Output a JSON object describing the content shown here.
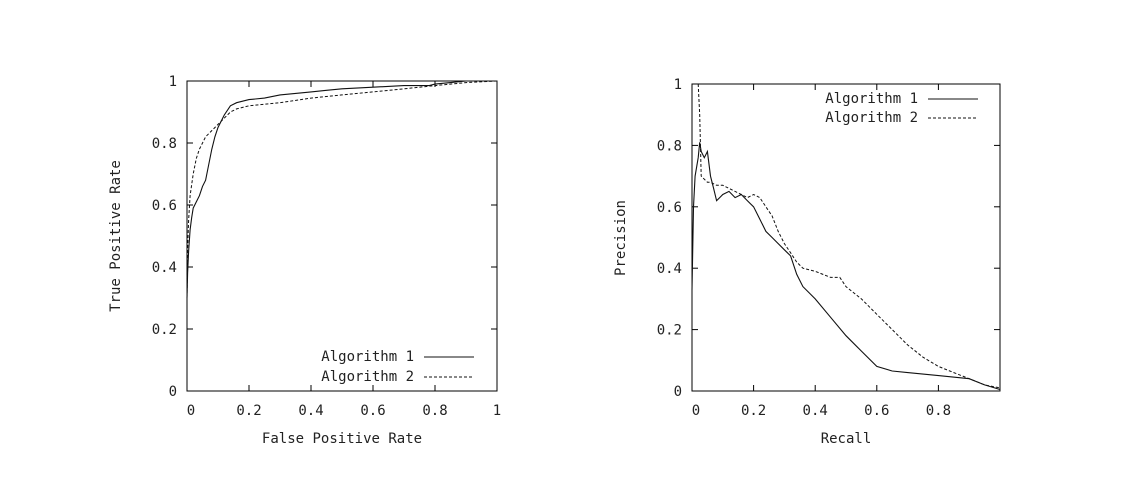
{
  "chart_data": [
    {
      "type": "line",
      "title": "",
      "xlabel": "False Positive Rate",
      "ylabel": "True Positive Rate",
      "xlim": [
        0,
        1
      ],
      "ylim": [
        0,
        1
      ],
      "xticks": [
        "0",
        "0.2",
        "0.4",
        "0.6",
        "0.8",
        "1"
      ],
      "yticks": [
        "0",
        "0.2",
        "0.4",
        "0.6",
        "0.8",
        "1"
      ],
      "grid": false,
      "legend": "bottom-right",
      "series": [
        {
          "name": "Algorithm 1",
          "style": "solid",
          "x": [
            0.0,
            0.002,
            0.005,
            0.01,
            0.015,
            0.02,
            0.03,
            0.04,
            0.05,
            0.06,
            0.07,
            0.08,
            0.09,
            0.1,
            0.12,
            0.14,
            0.16,
            0.2,
            0.25,
            0.3,
            0.35,
            0.4,
            0.45,
            0.5,
            0.6,
            0.7,
            0.78,
            0.8,
            0.85,
            0.9,
            1.0
          ],
          "y": [
            0.3,
            0.38,
            0.45,
            0.52,
            0.56,
            0.59,
            0.61,
            0.63,
            0.66,
            0.68,
            0.73,
            0.78,
            0.82,
            0.85,
            0.89,
            0.92,
            0.93,
            0.94,
            0.945,
            0.955,
            0.96,
            0.965,
            0.97,
            0.975,
            0.98,
            0.985,
            0.985,
            0.99,
            0.995,
            1.0,
            1.0
          ]
        },
        {
          "name": "Algorithm 2",
          "style": "dashed",
          "x": [
            0.0,
            0.002,
            0.005,
            0.01,
            0.02,
            0.03,
            0.04,
            0.05,
            0.06,
            0.08,
            0.1,
            0.12,
            0.14,
            0.16,
            0.2,
            0.3,
            0.4,
            0.5,
            0.6,
            0.7,
            0.8,
            0.85,
            0.9,
            1.0
          ],
          "y": [
            0.3,
            0.45,
            0.55,
            0.63,
            0.7,
            0.75,
            0.78,
            0.8,
            0.82,
            0.84,
            0.86,
            0.88,
            0.9,
            0.91,
            0.92,
            0.93,
            0.945,
            0.955,
            0.965,
            0.975,
            0.985,
            0.99,
            0.995,
            1.0
          ]
        }
      ]
    },
    {
      "type": "line",
      "title": "",
      "xlabel": "Recall",
      "ylabel": "Precision",
      "xlim": [
        0,
        1
      ],
      "ylim": [
        0,
        1
      ],
      "xticks": [
        "0",
        "0.2",
        "0.4",
        "0.6",
        "0.8"
      ],
      "yticks": [
        "0",
        "0.2",
        "0.4",
        "0.6",
        "0.8",
        "1"
      ],
      "grid": false,
      "legend": "top-right",
      "series": [
        {
          "name": "Algorithm 1",
          "style": "solid",
          "x": [
            0.0,
            0.005,
            0.01,
            0.02,
            0.025,
            0.03,
            0.04,
            0.05,
            0.06,
            0.07,
            0.08,
            0.09,
            0.1,
            0.12,
            0.14,
            0.16,
            0.18,
            0.2,
            0.22,
            0.24,
            0.26,
            0.28,
            0.3,
            0.32,
            0.34,
            0.36,
            0.4,
            0.45,
            0.5,
            0.55,
            0.6,
            0.65,
            0.7,
            0.8,
            0.9,
            0.95,
            1.0
          ],
          "y": [
            0.33,
            0.6,
            0.7,
            0.76,
            0.81,
            0.78,
            0.76,
            0.78,
            0.7,
            0.66,
            0.62,
            0.63,
            0.64,
            0.65,
            0.63,
            0.64,
            0.62,
            0.6,
            0.56,
            0.52,
            0.5,
            0.48,
            0.46,
            0.44,
            0.38,
            0.34,
            0.3,
            0.24,
            0.18,
            0.13,
            0.08,
            0.065,
            0.06,
            0.05,
            0.04,
            0.02,
            0.005
          ]
        },
        {
          "name": "Algorithm 2",
          "style": "dashed",
          "x": [
            0.02,
            0.025,
            0.03,
            0.04,
            0.05,
            0.06,
            0.08,
            0.1,
            0.12,
            0.14,
            0.16,
            0.18,
            0.2,
            0.22,
            0.24,
            0.26,
            0.28,
            0.3,
            0.32,
            0.34,
            0.36,
            0.4,
            0.45,
            0.48,
            0.5,
            0.55,
            0.6,
            0.65,
            0.7,
            0.75,
            0.8,
            0.85,
            0.9,
            0.95,
            1.0
          ],
          "y": [
            1.0,
            0.9,
            0.7,
            0.69,
            0.68,
            0.68,
            0.67,
            0.67,
            0.66,
            0.65,
            0.64,
            0.63,
            0.64,
            0.63,
            0.6,
            0.57,
            0.52,
            0.48,
            0.45,
            0.42,
            0.4,
            0.39,
            0.37,
            0.37,
            0.34,
            0.3,
            0.25,
            0.2,
            0.15,
            0.11,
            0.08,
            0.06,
            0.04,
            0.02,
            0.01
          ]
        }
      ]
    }
  ]
}
